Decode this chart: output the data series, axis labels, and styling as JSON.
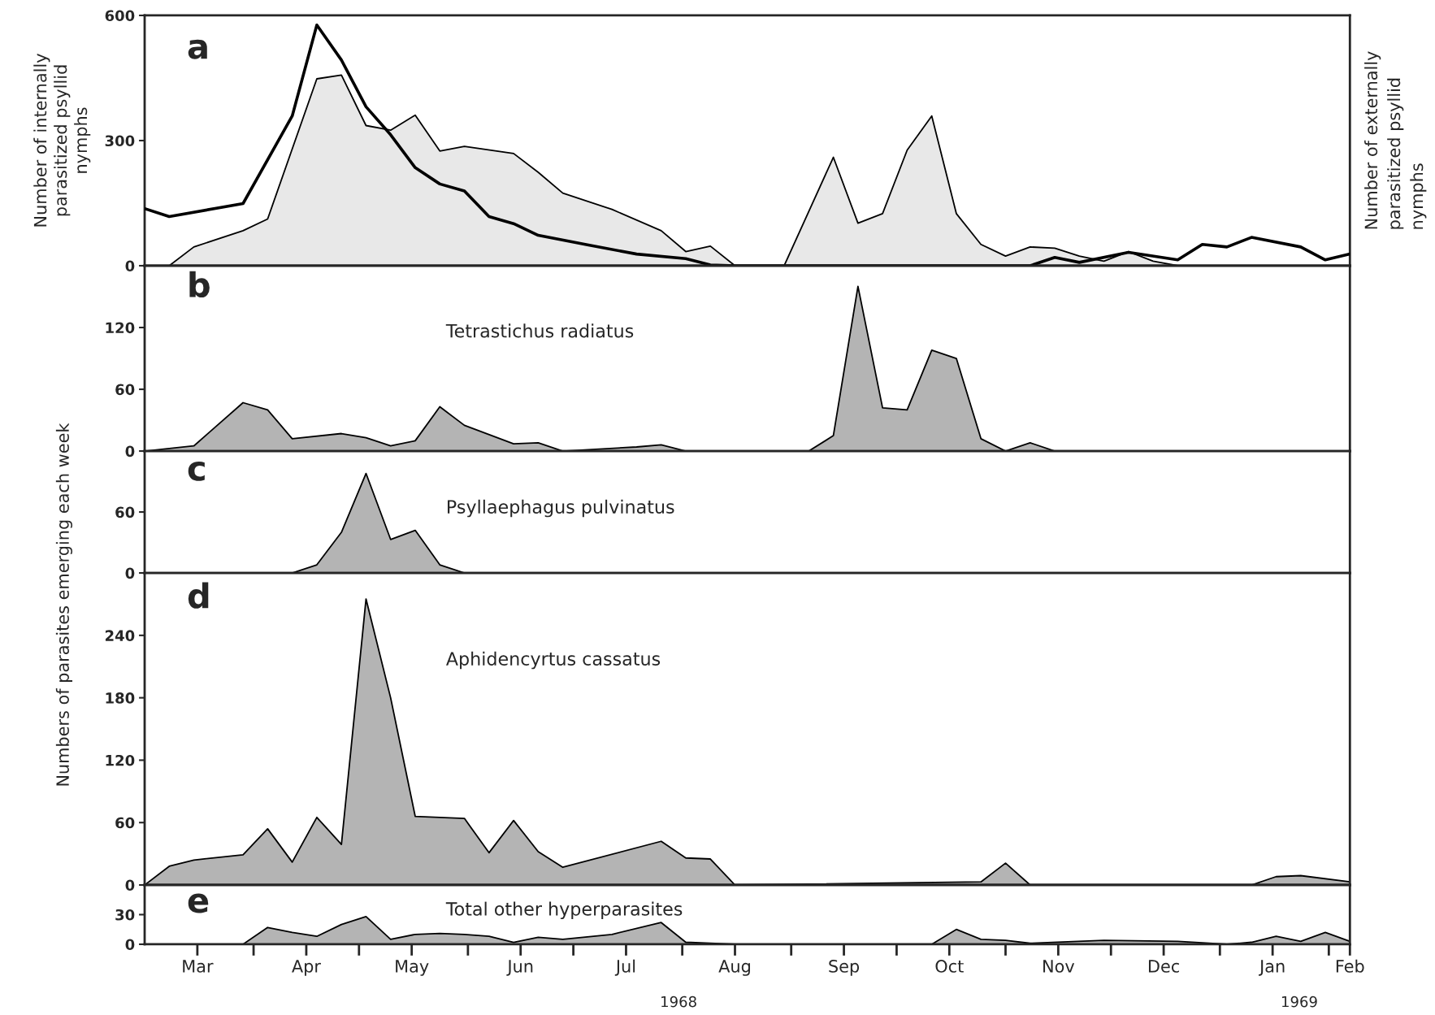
{
  "chart_data": [
    {
      "type": "area",
      "ylabel": "Number of internally\nparasitized psyllid\nnymphs",
      "y2label": "Number of externally\nparasitized psyllid\nnymphs",
      "annotations": [
        "a"
      ],
      "xlim": [
        "1968-03-01",
        "1969-02-07"
      ],
      "ylim": [
        0,
        600
      ],
      "yticks": [
        0,
        300,
        600
      ],
      "tick_labels": "y",
      "series": [
        {
          "color": "#e8e8e8",
          "x": [
            "1968-03-08",
            "1968-03-15",
            "1968-03-29",
            "1968-04-05",
            "1968-04-19",
            "1968-04-26",
            "1968-05-03",
            "1968-05-10",
            "1968-05-17",
            "1968-05-24",
            "1968-05-31",
            "1968-06-14",
            "1968-06-21",
            "1968-06-28",
            "1968-07-12",
            "1968-07-26",
            "1968-08-02",
            "1968-08-09",
            "1968-08-16",
            "1968-08-30",
            "1968-09-13",
            "1968-09-20",
            "1968-09-27",
            "1968-10-04",
            "1968-10-11",
            "1968-10-18",
            "1968-10-25",
            "1968-11-01",
            "1968-11-08",
            "1968-11-15",
            "1968-11-22",
            "1968-11-29",
            "1968-12-06",
            "1968-12-13",
            "1968-12-20",
            "1969-02-07"
          ],
          "values": [
            0,
            45,
            84,
            112,
            448,
            457,
            336,
            325,
            361,
            275,
            286,
            269,
            224,
            174,
            135,
            84,
            34,
            47,
            0,
            0,
            260,
            102,
            125,
            277,
            359,
            125,
            51,
            23,
            45,
            42,
            23,
            11,
            34,
            11,
            0,
            0
          ]
        },
        {
          "type": "line",
          "color": "#000000",
          "x": [
            "1968-03-01",
            "1968-03-08",
            "1968-03-29",
            "1968-04-12",
            "1968-04-19",
            "1968-04-26",
            "1968-05-03",
            "1968-05-10",
            "1968-05-17",
            "1968-05-24",
            "1968-05-31",
            "1968-06-07",
            "1968-06-14",
            "1968-06-21",
            "1968-07-05",
            "1968-07-19",
            "1968-08-02",
            "1968-08-09",
            "1968-08-16",
            "1968-11-08",
            "1968-11-15",
            "1968-11-22",
            "1968-12-06",
            "1968-12-20",
            "1968-12-27",
            "1969-01-03",
            "1969-01-10",
            "1969-01-24",
            "1969-01-31",
            "1969-02-07"
          ],
          "values": [
            137,
            118,
            149,
            359,
            577,
            493,
            381,
            314,
            235,
            196,
            179,
            118,
            101,
            73,
            50,
            28,
            17,
            2,
            0,
            0,
            20,
            8,
            32,
            14,
            51,
            45,
            68,
            45,
            14,
            28
          ]
        }
      ]
    },
    {
      "type": "area",
      "title": "Tetrastichus radiatus",
      "annotations": [
        "b"
      ],
      "xlim": [
        "1968-03-01",
        "1969-02-07"
      ],
      "ylim": [
        0,
        180
      ],
      "yticks": [
        0,
        60,
        120
      ],
      "tick_labels": "y",
      "series": [
        {
          "color": "#b4b4b4",
          "x": [
            "1968-03-01",
            "1968-03-15",
            "1968-03-29",
            "1968-04-05",
            "1968-04-12",
            "1968-04-26",
            "1968-05-03",
            "1968-05-10",
            "1968-05-17",
            "1968-05-24",
            "1968-05-31",
            "1968-06-14",
            "1968-06-21",
            "1968-06-28",
            "1968-07-19",
            "1968-07-26",
            "1968-08-02",
            "1968-09-06",
            "1968-09-13",
            "1968-09-20",
            "1968-09-27",
            "1968-10-04",
            "1968-10-11",
            "1968-10-18",
            "1968-10-25",
            "1968-11-01",
            "1968-11-08",
            "1968-11-15",
            "1969-02-07"
          ],
          "values": [
            0,
            5,
            47,
            40,
            12,
            17,
            13,
            5,
            10,
            43,
            25,
            7,
            8,
            0,
            4,
            6,
            0,
            0,
            15,
            160,
            42,
            40,
            98,
            90,
            12,
            0,
            8,
            0,
            0
          ]
        }
      ]
    },
    {
      "type": "area",
      "title": "Psyllaephagus pulvinatus",
      "annotations": [
        "c"
      ],
      "xlim": [
        "1968-03-01",
        "1969-02-07"
      ],
      "ylim": [
        0,
        120
      ],
      "yticks": [
        0,
        60
      ],
      "tick_labels": "y",
      "series": [
        {
          "color": "#b4b4b4",
          "x": [
            "1968-03-01",
            "1968-04-12",
            "1968-04-19",
            "1968-04-26",
            "1968-05-03",
            "1968-05-10",
            "1968-05-17",
            "1968-05-24",
            "1968-05-31",
            "1969-02-07"
          ],
          "values": [
            0,
            0,
            8,
            40,
            98,
            33,
            42,
            8,
            0,
            0
          ]
        }
      ]
    },
    {
      "type": "area",
      "title": "Aphidencyrtus cassatus",
      "ylabel": "Numbers of parasites emerging each week",
      "annotations": [
        "d"
      ],
      "xlim": [
        "1968-03-01",
        "1969-02-07"
      ],
      "ylim": [
        0,
        300
      ],
      "yticks": [
        0,
        60,
        120,
        180,
        240
      ],
      "tick_labels": "y",
      "series": [
        {
          "color": "#b4b4b4",
          "x": [
            "1968-03-01",
            "1968-03-08",
            "1968-03-15",
            "1968-03-29",
            "1968-04-05",
            "1968-04-12",
            "1968-04-19",
            "1968-04-26",
            "1968-05-03",
            "1968-05-10",
            "1968-05-17",
            "1968-05-31",
            "1968-06-07",
            "1968-06-14",
            "1968-06-21",
            "1968-06-28",
            "1968-07-26",
            "1968-08-02",
            "1968-08-09",
            "1968-08-16",
            "1968-10-25",
            "1968-11-01",
            "1968-11-08",
            "1969-01-10",
            "1969-01-17",
            "1969-01-24",
            "1969-02-07"
          ],
          "values": [
            0,
            18,
            24,
            29,
            54,
            22,
            65,
            39,
            275,
            180,
            66,
            64,
            31,
            62,
            32,
            17,
            42,
            26,
            25,
            0,
            3,
            21,
            0,
            0,
            8,
            9,
            3
          ]
        }
      ]
    },
    {
      "type": "area",
      "title": "Total other hyperparasites",
      "annotations": [
        "e",
        "1968",
        "1969"
      ],
      "xlim": [
        "1968-03-01",
        "1969-02-07"
      ],
      "ylim": [
        0,
        60
      ],
      "yticks": [
        0,
        30
      ],
      "xticks": [
        {
          "value": "1968-03-16",
          "label": "Mar"
        },
        {
          "value": "1968-04-01",
          "label": null
        },
        {
          "value": "1968-04-16",
          "label": "Apr"
        },
        {
          "value": "1968-05-01",
          "label": null
        },
        {
          "value": "1968-05-16",
          "label": "May"
        },
        {
          "value": "1968-06-01",
          "label": null
        },
        {
          "value": "1968-06-16",
          "label": "Jun"
        },
        {
          "value": "1968-07-01",
          "label": null
        },
        {
          "value": "1968-07-16",
          "label": "Jul"
        },
        {
          "value": "1968-08-01",
          "label": null
        },
        {
          "value": "1968-08-16",
          "label": "Aug"
        },
        {
          "value": "1968-09-01",
          "label": null
        },
        {
          "value": "1968-09-16",
          "label": "Sep"
        },
        {
          "value": "1968-10-01",
          "label": null
        },
        {
          "value": "1968-10-16",
          "label": "Oct"
        },
        {
          "value": "1968-11-01",
          "label": null
        },
        {
          "value": "1968-11-16",
          "label": "Nov"
        },
        {
          "value": "1968-12-01",
          "label": null
        },
        {
          "value": "1968-12-16",
          "label": "Dec"
        },
        {
          "value": "1969-01-01",
          "label": null
        },
        {
          "value": "1969-01-16",
          "label": "Jan"
        },
        {
          "value": "1969-02-01",
          "label": null
        },
        {
          "value": "1969-02-07",
          "label": "Feb"
        }
      ],
      "series": [
        {
          "color": "#b4b4b4",
          "x": [
            "1968-03-01",
            "1968-03-29",
            "1968-04-05",
            "1968-04-12",
            "1968-04-19",
            "1968-04-26",
            "1968-05-03",
            "1968-05-10",
            "1968-05-17",
            "1968-05-24",
            "1968-05-31",
            "1968-06-07",
            "1968-06-14",
            "1968-06-21",
            "1968-06-28",
            "1968-07-12",
            "1968-07-26",
            "1968-08-02",
            "1968-08-16",
            "1968-10-11",
            "1968-10-18",
            "1968-10-25",
            "1968-11-01",
            "1968-11-08",
            "1968-11-29",
            "1968-12-20",
            "1969-01-03",
            "1969-01-10",
            "1969-01-17",
            "1969-01-24",
            "1969-01-31",
            "1969-02-07"
          ],
          "values": [
            0,
            0,
            17,
            12,
            8,
            20,
            28,
            5,
            10,
            11,
            10,
            8,
            2,
            7,
            5,
            10,
            22,
            2,
            0,
            0,
            15,
            5,
            4,
            1,
            4,
            3,
            0,
            2,
            8,
            3,
            12,
            3
          ]
        }
      ]
    }
  ]
}
